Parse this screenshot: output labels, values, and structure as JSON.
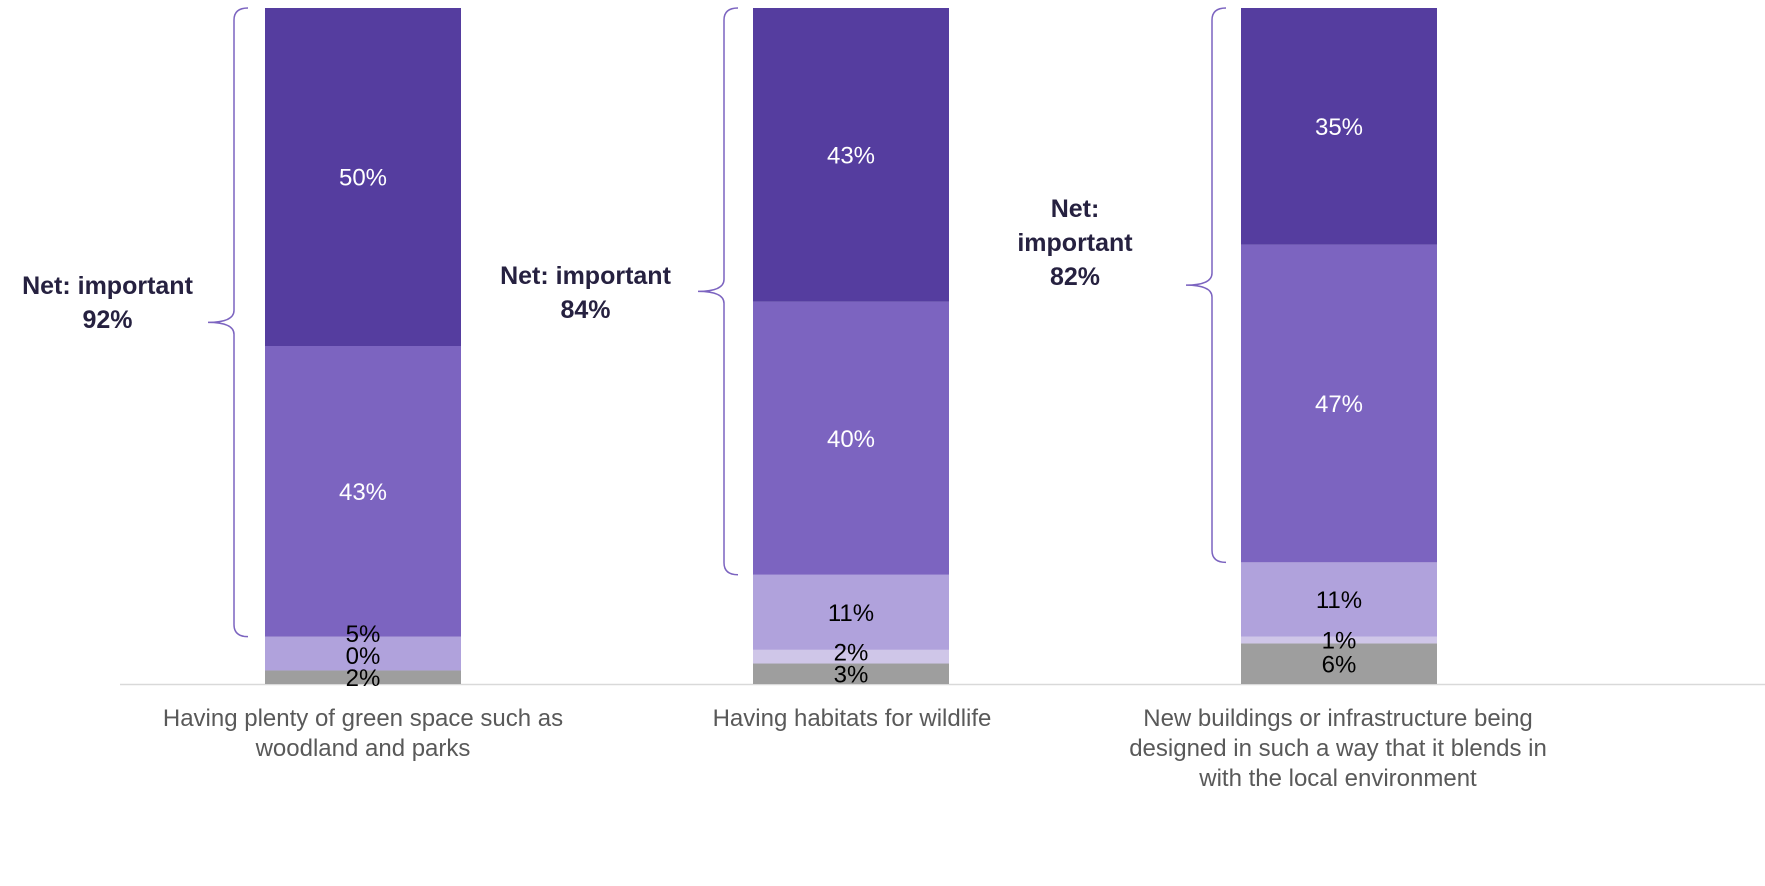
{
  "chart_data": {
    "type": "bar",
    "stacked": true,
    "categories": [
      "Having plenty of green space such as woodland and parks",
      "Having habitats for wildlife",
      "New buildings or infrastructure being designed in such a way that it blends in with the local environment"
    ],
    "series": [
      {
        "color": "#9e9e9e",
        "values": [
          2,
          3,
          6
        ],
        "labels": [
          "2%",
          "3%",
          "6%"
        ]
      },
      {
        "color": "#cfc6e8",
        "values": [
          0,
          2,
          1
        ],
        "labels": [
          "0%",
          "2%",
          "1%"
        ]
      },
      {
        "color": "#b0a2dc",
        "values": [
          5,
          11,
          11
        ],
        "labels": [
          "5%",
          "11%",
          "11%"
        ]
      },
      {
        "color": "#7c64c0",
        "values": [
          43,
          40,
          47
        ],
        "labels": [
          "43%",
          "40%",
          "47%"
        ]
      },
      {
        "color": "#553d9f",
        "values": [
          50,
          43,
          35
        ],
        "labels": [
          "50%",
          "43%",
          "35%"
        ]
      }
    ],
    "net": [
      {
        "label": "Net: important",
        "value": "92%"
      },
      {
        "label": "Net: important",
        "value": "84%"
      },
      {
        "label": "Net: important",
        "value": "82%"
      }
    ],
    "ylim": [
      0,
      100
    ],
    "grid": false,
    "legend": "none",
    "accent_color": "#7c64c0",
    "text_color": "#262140"
  }
}
